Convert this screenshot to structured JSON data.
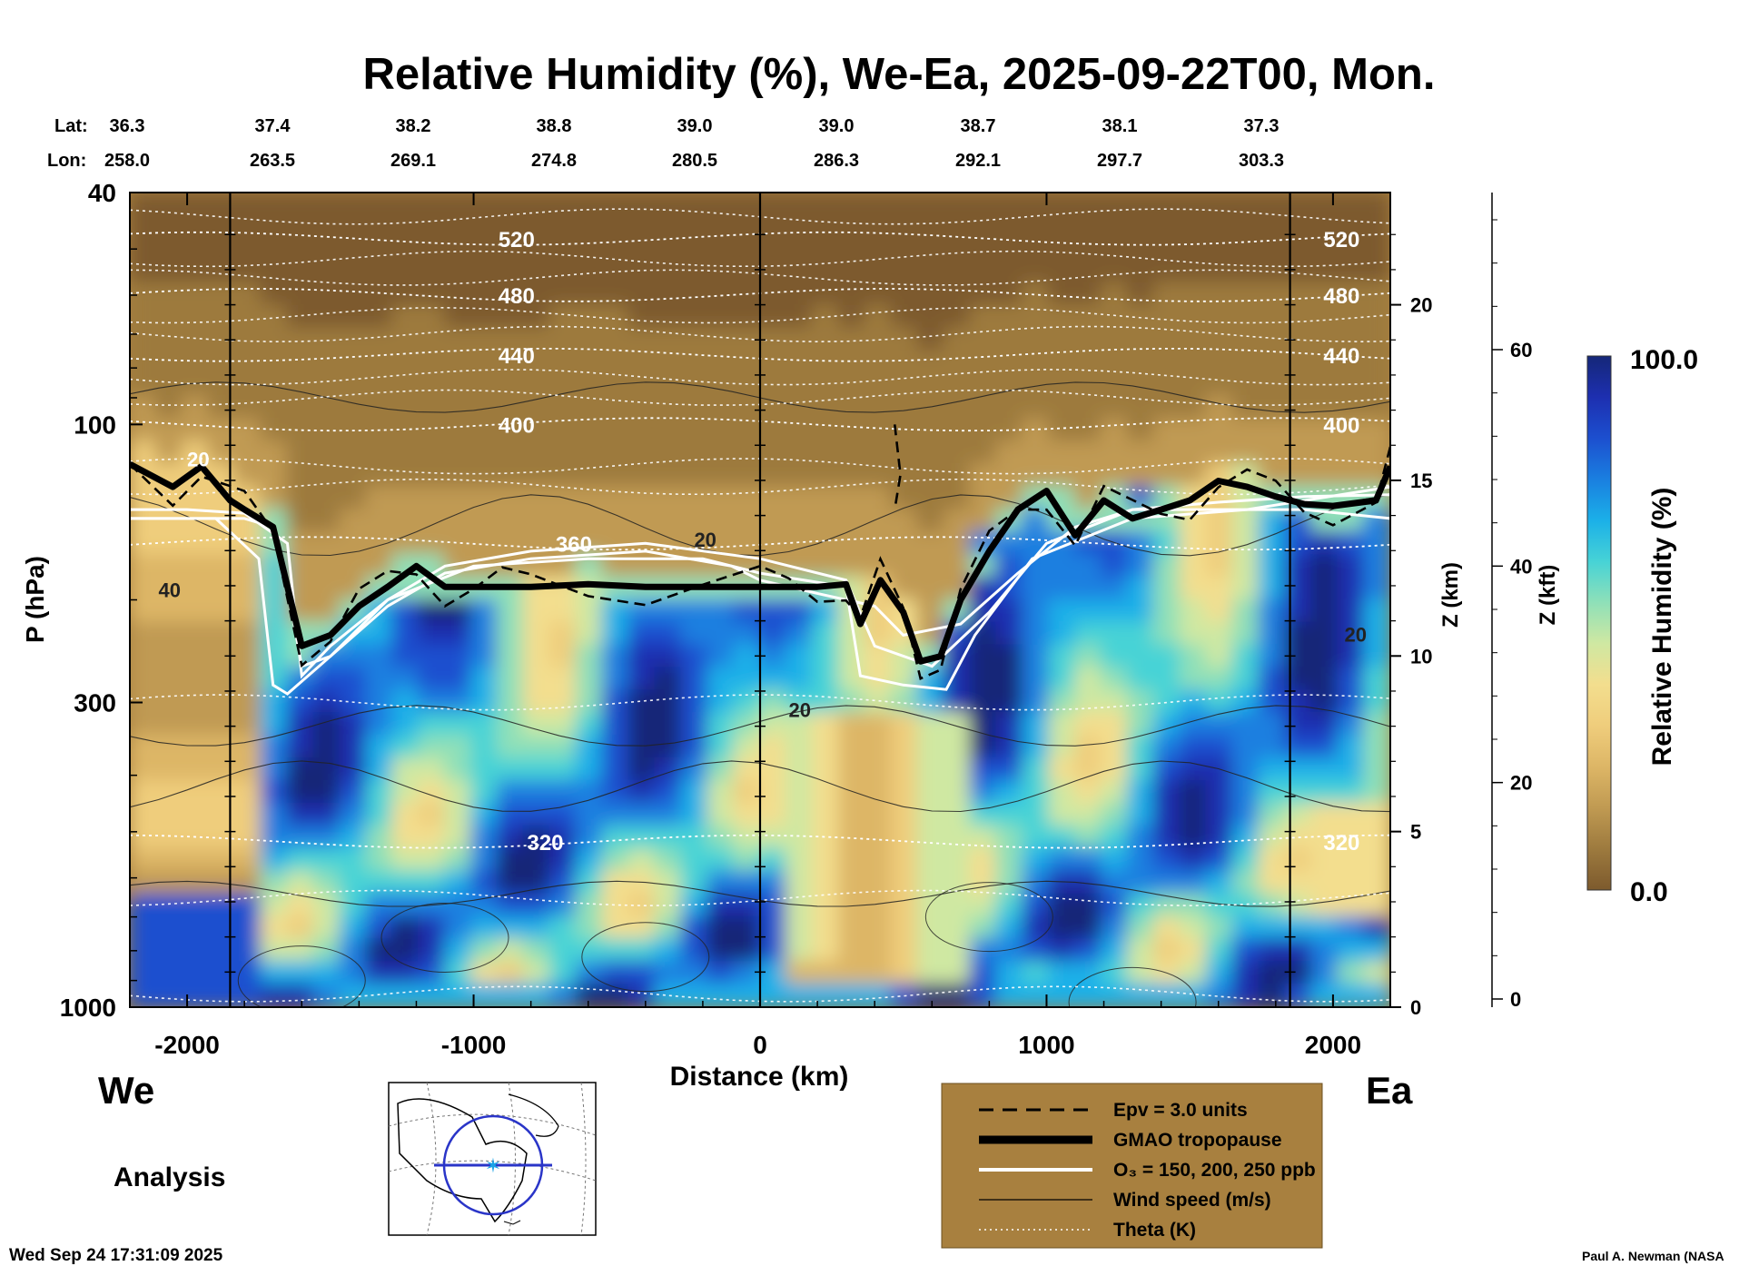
{
  "chart_data": {
    "type": "heatmap",
    "title": "Relative Humidity (%), We-Ea, 2025-09-22T00, Mon.",
    "xlabel": "Distance (km)",
    "ylabel": "P (hPa)",
    "y2label": "Z (km)",
    "y3label": "Z (kft)",
    "xlim": [
      -2200,
      2200
    ],
    "ylim": [
      1000,
      40
    ],
    "y_scale": "log",
    "x_ticks": [
      -2000,
      -1000,
      0,
      1000,
      2000
    ],
    "x_tick_labels": [
      "-2000",
      "-1000",
      "0",
      "1000",
      "2000"
    ],
    "y_ticks": [
      1000,
      300,
      100,
      40
    ],
    "y_tick_labels": [
      "1000",
      "300",
      "100",
      "40"
    ],
    "z_km_ticks": [
      0,
      5,
      10,
      15,
      20
    ],
    "z_km_tick_labels": [
      "0",
      "5",
      "10",
      "15",
      "20"
    ],
    "z_kft_ticks": [
      0,
      20,
      40,
      60
    ],
    "z_kft_tick_labels": [
      "0",
      "20",
      "40",
      "60"
    ],
    "lat_label": "Lat:",
    "lon_label": "Lon:",
    "lat_lon_x": [
      -2200,
      -1750,
      -1250,
      -750,
      -250,
      250,
      750,
      1250,
      1750
    ],
    "lat_values": [
      "36.3",
      "37.4",
      "38.2",
      "38.8",
      "39.0",
      "39.0",
      "38.7",
      "38.1",
      "37.3"
    ],
    "lon_values": [
      "258.0",
      "263.5",
      "269.1",
      "274.8",
      "280.5",
      "286.3",
      "292.1",
      "297.7",
      "303.3"
    ],
    "vertical_lines_x": [
      -1850,
      0,
      1850
    ],
    "colorbar": {
      "label": "Relative Humidity (%)",
      "min": 0.0,
      "max": 100.0,
      "min_label": "0.0",
      "max_label": "100.0",
      "colors": [
        "#7d5a2d",
        "#9d7a3e",
        "#c09a52",
        "#ddb666",
        "#efcd7c",
        "#f3de8e",
        "#cfe8a2",
        "#8fe0b8",
        "#47d3d6",
        "#1bb0e8",
        "#1a7fe0",
        "#1c4fcf",
        "#1d2fb0",
        "#152778"
      ]
    },
    "theta_contours": [
      {
        "label": "520",
        "p": 48
      },
      {
        "label": "480",
        "p": 60
      },
      {
        "label": "440",
        "p": 76
      },
      {
        "label": "400",
        "p": 100
      },
      {
        "label": "360",
        "p": 160
      },
      {
        "label": "320",
        "p": 520
      }
    ],
    "tropopause": {
      "x": [
        -2200,
        -2050,
        -1950,
        -1850,
        -1800,
        -1700,
        -1600,
        -1500,
        -1400,
        -1300,
        -1200,
        -1100,
        -1000,
        -900,
        -800,
        -600,
        -400,
        -200,
        0,
        100,
        200,
        300,
        350,
        420,
        500,
        560,
        630,
        700,
        800,
        900,
        1000,
        1100,
        1200,
        1300,
        1400,
        1500,
        1600,
        1700,
        1800,
        1900,
        2000,
        2150,
        2200
      ],
      "p": [
        117,
        128,
        118,
        135,
        140,
        150,
        240,
        230,
        205,
        190,
        175,
        190,
        190,
        190,
        190,
        188,
        190,
        190,
        190,
        190,
        190,
        188,
        220,
        185,
        210,
        255,
        250,
        200,
        165,
        140,
        130,
        155,
        135,
        145,
        140,
        135,
        125,
        128,
        133,
        137,
        138,
        135,
        118
      ]
    },
    "ozone_contours": [
      {
        "label": "150",
        "x": [
          -2200,
          -2000,
          -1800,
          -1700,
          -1650,
          -1600,
          -1500,
          -1300,
          -1100,
          -800,
          -400,
          -100,
          0,
          200,
          400,
          500,
          700,
          900,
          1100,
          1300,
          1600,
          1900,
          2200
        ],
        "p": [
          145,
          145,
          145,
          150,
          190,
          260,
          250,
          205,
          180,
          170,
          165,
          175,
          185,
          195,
          205,
          230,
          220,
          180,
          150,
          140,
          140,
          140,
          145
        ]
      },
      {
        "label": "200",
        "x": [
          -2200,
          -2000,
          -1800,
          -1650,
          -1600,
          -1500,
          -1300,
          -1100,
          -800,
          -400,
          0,
          300,
          400,
          600,
          800,
          1000,
          1300,
          1600,
          1900,
          2200
        ],
        "p": [
          140,
          140,
          142,
          160,
          270,
          240,
          200,
          175,
          165,
          160,
          170,
          185,
          240,
          260,
          210,
          160,
          140,
          136,
          133,
          132
        ]
      },
      {
        "label": "250",
        "x": [
          -2200,
          -1900,
          -1750,
          -1700,
          -1650,
          -1500,
          -1300,
          -1000,
          -600,
          -200,
          0,
          300,
          350,
          500,
          650,
          750,
          950,
          1300,
          1700,
          2200
        ],
        "p": [
          145,
          145,
          170,
          280,
          290,
          250,
          200,
          175,
          170,
          170,
          180,
          190,
          270,
          280,
          285,
          230,
          170,
          145,
          140,
          128
        ]
      }
    ],
    "wind_label": "20",
    "wind_label_40": "40",
    "legend": {
      "placement": "bottom-center",
      "items": [
        {
          "label": "Epv = 3.0 units",
          "style": "dashed"
        },
        {
          "label": "GMAO tropopause",
          "style": "thick"
        },
        {
          "label": "O₃ = 150, 200, 250 ppb",
          "style": "white"
        },
        {
          "label": "Wind speed (m/s)",
          "style": "thin"
        },
        {
          "label": "Theta (K)",
          "style": "dotted"
        }
      ]
    },
    "direction_left": "We",
    "direction_right": "Ea",
    "analysis_label": "Analysis",
    "timestamp": "Wed Sep 24 17:31:09 2025",
    "credit": "Paul A. Newman (NASA"
  }
}
